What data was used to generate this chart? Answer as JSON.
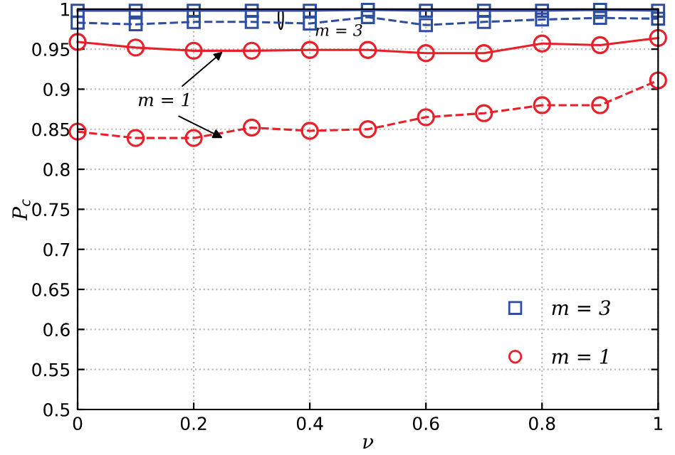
{
  "chart_data": {
    "type": "line",
    "xlabel": "ν",
    "ylabel": "P$_{c}$",
    "x": [
      0,
      0.1,
      0.2,
      0.3,
      0.4,
      0.5,
      0.6,
      0.7,
      0.8,
      0.9,
      1
    ],
    "series": [
      {
        "name": "m = 3",
        "color": "#2e4f9e",
        "marker": "square",
        "line_style": "solid",
        "values": [
          0.998,
          0.998,
          0.998,
          0.998,
          0.998,
          0.999,
          0.998,
          0.998,
          0.998,
          0.999,
          0.998
        ]
      },
      {
        "color": "#2e4f9e",
        "marker": "square",
        "line_style": "dashed",
        "values": [
          0.983,
          0.981,
          0.984,
          0.984,
          0.982,
          0.99,
          0.98,
          0.984,
          0.987,
          0.989,
          0.988
        ]
      },
      {
        "name": "m = 1",
        "color": "#e8202a",
        "marker": "circle",
        "line_style": "solid",
        "values": [
          0.959,
          0.952,
          0.948,
          0.948,
          0.949,
          0.949,
          0.945,
          0.945,
          0.957,
          0.955,
          0.964
        ]
      },
      {
        "color": "#e8202a",
        "marker": "circle",
        "line_style": "dashed",
        "values": [
          0.847,
          0.839,
          0.839,
          0.852,
          0.848,
          0.85,
          0.865,
          0.87,
          0.88,
          0.88,
          0.911
        ]
      }
    ],
    "annotations": [
      {
        "text": "m = 3",
        "x": 0.35,
        "y": 0.985
      },
      {
        "text": "m = 1",
        "x": 0.25,
        "y": 0.947
      }
    ],
    "xlim": [
      0,
      1
    ],
    "ylim": [
      0.5,
      1
    ],
    "xticks": [
      0,
      0.2,
      0.4,
      0.6,
      0.8,
      1
    ],
    "yticks": [
      0.5,
      0.55,
      0.6,
      0.65,
      0.7,
      0.75,
      0.8,
      0.85,
      0.9,
      0.95,
      1
    ],
    "grid": true,
    "legend": "bottom right"
  }
}
